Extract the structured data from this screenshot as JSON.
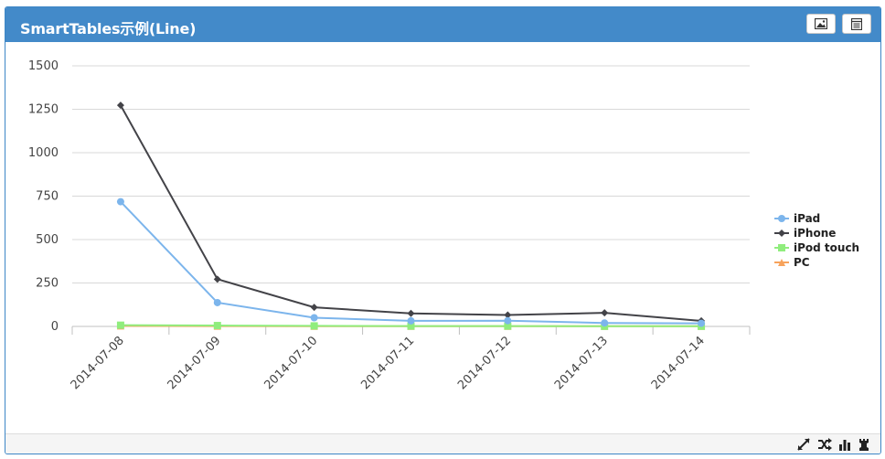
{
  "panel": {
    "title": "SmartTables示例(Line)",
    "header_buttons": [
      {
        "name": "image-export",
        "icon": "image-icon"
      },
      {
        "name": "data-table",
        "icon": "table-icon"
      }
    ],
    "footer_tools": [
      {
        "name": "expand",
        "icon": "expand-arrows-icon"
      },
      {
        "name": "shuffle",
        "icon": "shuffle-icon"
      },
      {
        "name": "bar-chart",
        "icon": "bar-chart-icon"
      },
      {
        "name": "chess-rook",
        "icon": "rook-icon"
      }
    ],
    "colors": {
      "header": "#438ac9",
      "border": "#3d86c6"
    }
  },
  "chart_data": {
    "type": "line",
    "title": "",
    "xlabel": "",
    "ylabel": "",
    "categories": [
      "2014-07-08",
      "2014-07-09",
      "2014-07-10",
      "2014-07-11",
      "2014-07-12",
      "2014-07-13",
      "2014-07-14"
    ],
    "ylim": [
      0,
      1500
    ],
    "yticks": [
      "0",
      "250",
      "500",
      "750",
      "1000",
      "1250",
      "1500"
    ],
    "grid": true,
    "legend_position": "right",
    "series": [
      {
        "name": "iPad",
        "color": "#7cb5ec",
        "marker": "circle",
        "values": [
          718,
          137,
          50,
          32,
          33,
          20,
          18
        ]
      },
      {
        "name": "iPhone",
        "color": "#434348",
        "marker": "diamond",
        "values": [
          1273,
          272,
          110,
          75,
          66,
          78,
          32
        ]
      },
      {
        "name": "iPod touch",
        "color": "#90ed7d",
        "marker": "square",
        "values": [
          7,
          5,
          3,
          2,
          2,
          1,
          1
        ]
      },
      {
        "name": "PC",
        "color": "#f7a35c",
        "marker": "triangle",
        "values": [
          3,
          2,
          1,
          1,
          1,
          1,
          1
        ]
      }
    ]
  }
}
